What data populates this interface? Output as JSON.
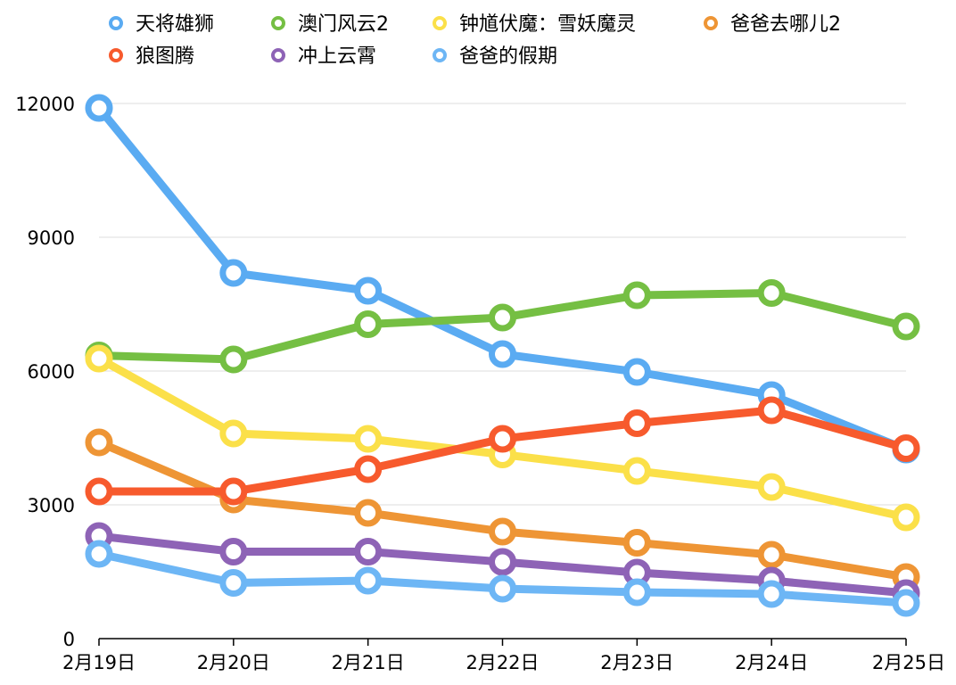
{
  "chart_data": {
    "type": "line",
    "title": "",
    "xlabel": "",
    "ylabel": "",
    "categories": [
      "2月19日",
      "2月20日",
      "2月21日",
      "2月22日",
      "2月23日",
      "2月24日",
      "2月25日"
    ],
    "ylim": [
      0,
      12000
    ],
    "yticks": [
      0,
      3000,
      6000,
      9000,
      12000
    ],
    "grid": true,
    "legend_position": "top",
    "series": [
      {
        "name": "天将雄狮",
        "color": "#5aabf2",
        "values": [
          11900,
          8200,
          7800,
          6380,
          5980,
          5460,
          4240
        ]
      },
      {
        "name": "澳门风云2",
        "color": "#75bf43",
        "values": [
          6350,
          6260,
          7050,
          7200,
          7700,
          7750,
          7000
        ]
      },
      {
        "name": "钟馗伏魔：雪妖魔灵",
        "color": "#fbe049",
        "values": [
          6280,
          4600,
          4480,
          4130,
          3760,
          3400,
          2720
        ]
      },
      {
        "name": "爸爸去哪儿2",
        "color": "#ee9535",
        "values": [
          4400,
          3120,
          2820,
          2400,
          2150,
          1880,
          1380
        ]
      },
      {
        "name": "狼图腾",
        "color": "#f75a2d",
        "values": [
          3300,
          3300,
          3800,
          4480,
          4830,
          5120,
          4270
        ]
      },
      {
        "name": "冲上云霄",
        "color": "#8e63b6",
        "values": [
          2300,
          1950,
          1950,
          1720,
          1480,
          1300,
          1020
        ]
      },
      {
        "name": "爸爸的假期",
        "color": "#6db6f5",
        "values": [
          1900,
          1250,
          1300,
          1120,
          1040,
          1000,
          800
        ]
      }
    ]
  }
}
